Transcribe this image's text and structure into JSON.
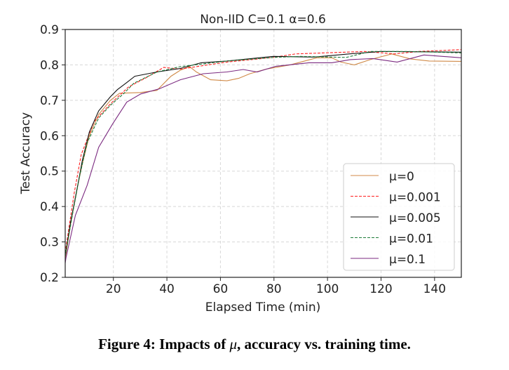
{
  "chart_data": {
    "type": "line",
    "title": "Non-IID C=0.1 α=0.6",
    "xlabel": "Elapsed Time (min)",
    "ylabel": "Test Accuracy",
    "xlim": [
      2,
      150
    ],
    "ylim": [
      0.2,
      0.9
    ],
    "xticks": [
      20,
      40,
      60,
      80,
      100,
      120,
      140
    ],
    "yticks": [
      0.2,
      0.3,
      0.4,
      0.5,
      0.6,
      0.7,
      0.8,
      0.9
    ],
    "grid": true,
    "legend_position": "lower-right",
    "series": [
      {
        "name": "μ=0",
        "color": "#d08a48",
        "dash": false,
        "points": [
          [
            2,
            0.25
          ],
          [
            4,
            0.35
          ],
          [
            6.7,
            0.46
          ],
          [
            8.4,
            0.52
          ],
          [
            11,
            0.6
          ],
          [
            14.5,
            0.66
          ],
          [
            18.9,
            0.7
          ],
          [
            22.3,
            0.72
          ],
          [
            30,
            0.722
          ],
          [
            36.3,
            0.728
          ],
          [
            41.5,
            0.768
          ],
          [
            45,
            0.785
          ],
          [
            48.5,
            0.795
          ],
          [
            51,
            0.78
          ],
          [
            56.3,
            0.758
          ],
          [
            62.4,
            0.755
          ],
          [
            66.8,
            0.762
          ],
          [
            71,
            0.775
          ],
          [
            77,
            0.788
          ],
          [
            86,
            0.8
          ],
          [
            96,
            0.82
          ],
          [
            101.6,
            0.82
          ],
          [
            105,
            0.808
          ],
          [
            110,
            0.8
          ],
          [
            116,
            0.815
          ],
          [
            124,
            0.831
          ],
          [
            131,
            0.817
          ],
          [
            138,
            0.811
          ],
          [
            150,
            0.81
          ]
        ]
      },
      {
        "name": "μ=0.001",
        "color": "#ff2020",
        "dash": true,
        "points": [
          [
            2,
            0.27
          ],
          [
            5.4,
            0.44
          ],
          [
            8,
            0.547
          ],
          [
            12.8,
            0.64
          ],
          [
            18.9,
            0.69
          ],
          [
            25.7,
            0.738
          ],
          [
            31.8,
            0.762
          ],
          [
            38.8,
            0.793
          ],
          [
            45,
            0.788
          ],
          [
            53.6,
            0.798
          ],
          [
            62.4,
            0.808
          ],
          [
            79.8,
            0.821
          ],
          [
            88,
            0.831
          ],
          [
            99,
            0.834
          ],
          [
            114,
            0.838
          ],
          [
            125,
            0.831
          ],
          [
            134,
            0.838
          ],
          [
            150,
            0.843
          ]
        ]
      },
      {
        "name": "μ=0.005",
        "color": "#111111",
        "dash": false,
        "points": [
          [
            2,
            0.26
          ],
          [
            4,
            0.355
          ],
          [
            6.7,
            0.46
          ],
          [
            8.4,
            0.53
          ],
          [
            11,
            0.61
          ],
          [
            14.5,
            0.67
          ],
          [
            18.9,
            0.71
          ],
          [
            21.5,
            0.73
          ],
          [
            25,
            0.75
          ],
          [
            28,
            0.768
          ],
          [
            36.3,
            0.78
          ],
          [
            45,
            0.79
          ],
          [
            52.8,
            0.806
          ],
          [
            62.4,
            0.811
          ],
          [
            79.8,
            0.824
          ],
          [
            95,
            0.822
          ],
          [
            108,
            0.831
          ],
          [
            120,
            0.838
          ],
          [
            150,
            0.836
          ]
        ]
      },
      {
        "name": "μ=0.01",
        "color": "#1e7b3a",
        "dash": true,
        "points": [
          [
            2,
            0.26
          ],
          [
            5,
            0.39
          ],
          [
            7.5,
            0.49
          ],
          [
            10.2,
            0.58
          ],
          [
            14.5,
            0.65
          ],
          [
            18.9,
            0.686
          ],
          [
            24,
            0.72
          ],
          [
            27.6,
            0.748
          ],
          [
            36.3,
            0.78
          ],
          [
            45,
            0.795
          ],
          [
            62.4,
            0.811
          ],
          [
            79.8,
            0.821
          ],
          [
            90,
            0.824
          ],
          [
            107,
            0.821
          ],
          [
            116,
            0.838
          ],
          [
            130,
            0.838
          ],
          [
            150,
            0.834
          ]
        ]
      },
      {
        "name": "μ=0.1",
        "color": "#7b2a80",
        "dash": false,
        "points": [
          [
            2,
            0.24
          ],
          [
            2.3,
            0.255
          ],
          [
            5.8,
            0.375
          ],
          [
            10.2,
            0.46
          ],
          [
            14.5,
            0.567
          ],
          [
            19.7,
            0.633
          ],
          [
            25,
            0.695
          ],
          [
            30.2,
            0.718
          ],
          [
            37,
            0.732
          ],
          [
            45,
            0.758
          ],
          [
            53.6,
            0.775
          ],
          [
            62.4,
            0.78
          ],
          [
            68.5,
            0.787
          ],
          [
            73.7,
            0.78
          ],
          [
            80.7,
            0.796
          ],
          [
            93,
            0.806
          ],
          [
            101.6,
            0.806
          ],
          [
            108.5,
            0.815
          ],
          [
            117,
            0.818
          ],
          [
            126,
            0.808
          ],
          [
            136,
            0.828
          ],
          [
            150,
            0.82
          ]
        ]
      }
    ]
  },
  "caption": {
    "prefix": "Figure 4: Impacts of ",
    "symbol": "μ",
    "suffix": ", accuracy vs. training time."
  }
}
